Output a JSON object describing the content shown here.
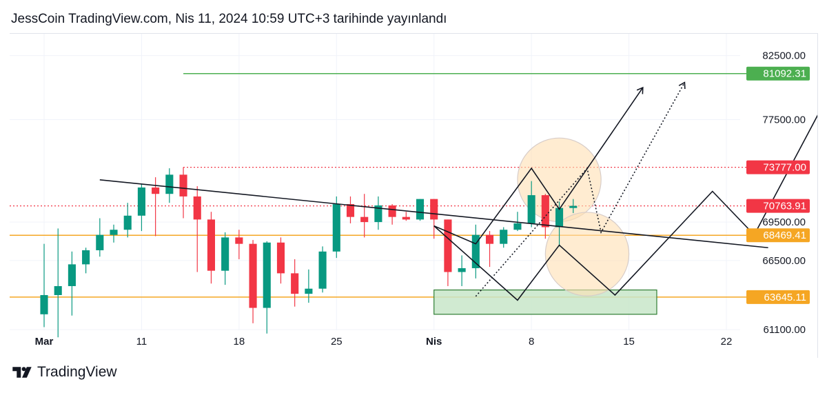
{
  "header": {
    "title": "JessCoin TradingView.com, Nis 11, 2024 10:59 UTC+3 tarihinde yayınlandı"
  },
  "footer": {
    "brand": "TradingView"
  },
  "colors": {
    "up": "#089981",
    "down": "#f23645",
    "green_line": "#4caf50",
    "orange_line": "#f5a623",
    "red_dotted": "#f23645",
    "box_fill": "#c8e6c9"
  },
  "chart_data": {
    "type": "candlestick",
    "title": "",
    "y_axis": {
      "ticks": [
        "82500.00",
        "77500.00",
        "69500.00",
        "66500.00",
        "61100.00"
      ],
      "range": [
        58900,
        84200
      ]
    },
    "x_axis": {
      "ticks": [
        "Mar",
        "11",
        "18",
        "25",
        "Nis",
        "8",
        "15",
        "22"
      ],
      "dates": [
        "2024-03-04",
        "2024-03-11",
        "2024-03-18",
        "2024-03-25",
        "2024-04-01",
        "2024-04-08",
        "2024-04-15",
        "2024-04-22"
      ]
    },
    "price_labels": [
      {
        "value": 81092.31,
        "text": "81092.31",
        "color": "#4caf50"
      },
      {
        "value": 73777.0,
        "text": "73777.00",
        "color": "#f23645"
      },
      {
        "value": 70763.91,
        "text": "70763.91",
        "color": "#f23645"
      },
      {
        "value": 68469.41,
        "text": "68469.41",
        "color": "#f5a623"
      },
      {
        "value": 63645.11,
        "text": "63645.11",
        "color": "#f5a623"
      }
    ],
    "horizontal_levels": [
      {
        "value": 81092.31,
        "style": "solid",
        "color": "#4caf50",
        "from_date": "2024-03-14"
      },
      {
        "value": 73777.0,
        "style": "dotted",
        "color": "#f23645",
        "from_date": "2024-03-14"
      },
      {
        "value": 70763.91,
        "style": "dotted",
        "color": "#f23645",
        "from_date": "2024-03-01"
      },
      {
        "value": 68469.41,
        "style": "solid",
        "color": "#f5a623",
        "from_date": "2024-03-01"
      },
      {
        "value": 63645.11,
        "style": "solid",
        "color": "#f5a623",
        "from_date": "2024-03-01"
      }
    ],
    "daily_ohlc": [
      [
        "2024-03-04",
        62300,
        67800,
        61300,
        63800
      ],
      [
        "2024-03-05",
        63800,
        69000,
        60500,
        64500
      ],
      [
        "2024-03-06",
        64500,
        67200,
        62200,
        66200
      ],
      [
        "2024-03-07",
        66200,
        67500,
        65500,
        67300
      ],
      [
        "2024-03-08",
        67300,
        69800,
        66800,
        68500
      ],
      [
        "2024-03-09",
        68500,
        69300,
        67900,
        68900
      ],
      [
        "2024-03-10",
        68900,
        71000,
        68300,
        70000
      ],
      [
        "2024-03-11",
        70000,
        72500,
        68800,
        72200
      ],
      [
        "2024-03-12",
        72200,
        73000,
        68400,
        71700
      ],
      [
        "2024-03-13",
        71700,
        73700,
        71000,
        73200
      ],
      [
        "2024-03-14",
        73200,
        73777,
        69800,
        71500
      ],
      [
        "2024-03-15",
        71500,
        72300,
        65600,
        69700
      ],
      [
        "2024-03-16",
        69700,
        70300,
        64700,
        65700
      ],
      [
        "2024-03-17",
        65700,
        68700,
        64600,
        68300
      ],
      [
        "2024-03-18",
        68300,
        68900,
        66600,
        67800
      ],
      [
        "2024-03-19",
        67800,
        68100,
        61600,
        62800
      ],
      [
        "2024-03-20",
        62800,
        68000,
        60800,
        67900
      ],
      [
        "2024-03-21",
        67900,
        68300,
        64700,
        65500
      ],
      [
        "2024-03-22",
        65500,
        66600,
        62900,
        63900
      ],
      [
        "2024-03-23",
        63900,
        65800,
        63200,
        64300
      ],
      [
        "2024-03-24",
        64300,
        67600,
        64000,
        67200
      ],
      [
        "2024-03-25",
        67200,
        71500,
        66700,
        70900
      ],
      [
        "2024-03-26",
        70900,
        71500,
        69400,
        69900
      ],
      [
        "2024-03-27",
        69900,
        71700,
        68300,
        69500
      ],
      [
        "2024-03-28",
        69500,
        71500,
        68900,
        70800
      ],
      [
        "2024-03-29",
        70800,
        70900,
        69300,
        69900
      ],
      [
        "2024-03-30",
        69900,
        70300,
        69600,
        69700
      ],
      [
        "2024-03-31",
        69700,
        71300,
        69600,
        71300
      ],
      [
        "2024-04-01",
        71300,
        71300,
        68200,
        69700
      ],
      [
        "2024-04-02",
        69700,
        69700,
        64500,
        65600
      ],
      [
        "2024-04-03",
        65600,
        66900,
        64500,
        65900
      ],
      [
        "2024-04-04",
        65900,
        69300,
        65100,
        68500
      ],
      [
        "2024-04-05",
        68500,
        68800,
        66000,
        67800
      ],
      [
        "2024-04-06",
        67800,
        69100,
        67500,
        68900
      ],
      [
        "2024-04-07",
        68900,
        70300,
        68800,
        69400
      ],
      [
        "2024-04-08",
        69400,
        72700,
        69100,
        71600
      ],
      [
        "2024-04-09",
        71600,
        71700,
        68200,
        69100
      ],
      [
        "2024-04-10",
        69100,
        71100,
        67600,
        70600
      ],
      [
        "2024-04-11",
        70600,
        71300,
        70200,
        70763.91
      ]
    ],
    "drawings": {
      "trendline": [
        [
          "2024-03-08",
          72800
        ],
        [
          "2024-04-25",
          67500
        ]
      ],
      "demand_box": {
        "from": "2024-04-01",
        "to": "2024-04-17",
        "top": 64200,
        "bottom": 62300
      },
      "path_down_up": [
        [
          "2024-04-01",
          69200
        ],
        [
          "2024-04-07",
          63400
        ],
        [
          "2024-04-10",
          67700
        ],
        [
          "2024-04-14",
          63800
        ],
        [
          "2024-04-21",
          71900
        ],
        [
          "2024-04-24",
          68500
        ],
        [
          "2024-04-30",
          80800
        ]
      ],
      "path_up": [
        [
          "2024-04-01",
          69200
        ],
        [
          "2024-04-04",
          67800
        ],
        [
          "2024-04-08",
          73700
        ],
        [
          "2024-04-10",
          70500
        ],
        [
          "2024-04-16",
          80000
        ]
      ],
      "path_dotted": [
        [
          "2024-04-04",
          63700
        ],
        [
          "2024-04-12",
          73700
        ],
        [
          "2024-04-13",
          68700
        ],
        [
          "2024-04-19",
          80400
        ]
      ],
      "circles": [
        {
          "date": "2024-04-10",
          "price": 72800,
          "radius_days": 2.5,
          "color": "#ffe0b2"
        },
        {
          "date": "2024-04-12",
          "price": 67000,
          "radius_days": 2.5,
          "color": "#ffe0b2"
        }
      ]
    }
  }
}
